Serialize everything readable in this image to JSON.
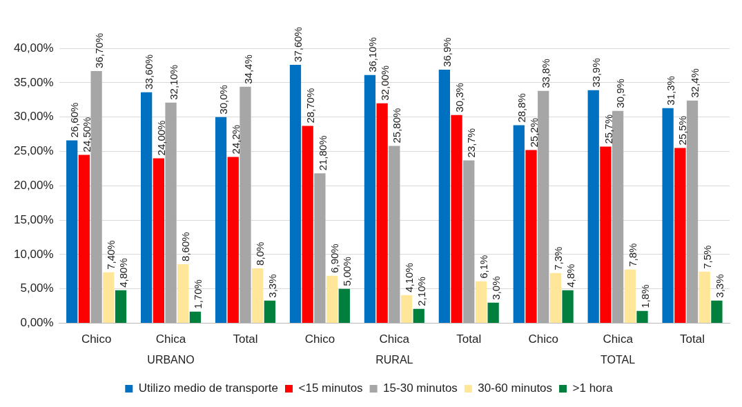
{
  "chart_data": {
    "type": "bar",
    "categories": [
      "Chico",
      "Chica",
      "Total",
      "Chico",
      "Chica",
      "Total",
      "Chico",
      "Chica",
      "Total"
    ],
    "annotations": [
      "URBANO",
      "RURAL",
      "TOTAL"
    ],
    "ylim": [
      0,
      40
    ],
    "yticks": [
      {
        "value": 0,
        "label": "0,00%"
      },
      {
        "value": 5,
        "label": "5,00%"
      },
      {
        "value": 10,
        "label": "10,00%"
      },
      {
        "value": 15,
        "label": "15,00%"
      },
      {
        "value": 20,
        "label": "20,00%"
      },
      {
        "value": 25,
        "label": "25,00%"
      },
      {
        "value": 30,
        "label": "30,00%"
      },
      {
        "value": 35,
        "label": "35,00%"
      },
      {
        "value": 40,
        "label": "40,00%"
      }
    ],
    "grid": "y",
    "legend": "bottom",
    "series": [
      {
        "name": "Utilizo medio de transporte",
        "color": "#0070c0",
        "values": [
          26.6,
          33.6,
          30.0,
          37.6,
          36.1,
          36.9,
          28.8,
          33.9,
          31.3
        ],
        "value_labels": [
          "26,60%",
          "33,60%",
          "30,0%",
          "37,60%",
          "36,10%",
          "36,9%",
          "28,8%",
          "33,9%",
          "31,3%"
        ]
      },
      {
        "name": "<15 minutos",
        "color": "#ff0000",
        "values": [
          24.5,
          24.0,
          24.2,
          28.7,
          32.0,
          30.3,
          25.2,
          25.7,
          25.5
        ],
        "value_labels": [
          "24,50%",
          "24,00%",
          "24,2%",
          "28,70%",
          "32,00%",
          "30,3%",
          "25,2%",
          "25,7%",
          "25,5%"
        ]
      },
      {
        "name": "15-30 minutos",
        "color": "#a6a6a6",
        "values": [
          36.7,
          32.1,
          34.4,
          21.8,
          25.8,
          23.7,
          33.8,
          30.9,
          32.4
        ],
        "value_labels": [
          "36,70%",
          "32,10%",
          "34,4%",
          "21,80%",
          "25,80%",
          "23,7%",
          "33,8%",
          "30,9%",
          "32,4%"
        ]
      },
      {
        "name": "30-60 minutos",
        "color": "#ffe699",
        "values": [
          7.4,
          8.6,
          8.0,
          6.9,
          4.1,
          6.1,
          7.3,
          7.8,
          7.5
        ],
        "value_labels": [
          "7,40%",
          "8,60%",
          "8,0%",
          "6,90%",
          "4,10%",
          "6,1%",
          "7,3%",
          "7,8%",
          "7,5%"
        ]
      },
      {
        "name": ">1 hora",
        "color": "#00803c",
        "values": [
          4.8,
          1.7,
          3.3,
          5.0,
          2.1,
          3.0,
          4.8,
          1.8,
          3.3
        ],
        "value_labels": [
          "4,80%",
          "1,70%",
          "3,3%",
          "5,00%",
          "2,10%",
          "3,0%",
          "4,8%",
          "1,8%",
          "3,3%"
        ]
      }
    ]
  }
}
